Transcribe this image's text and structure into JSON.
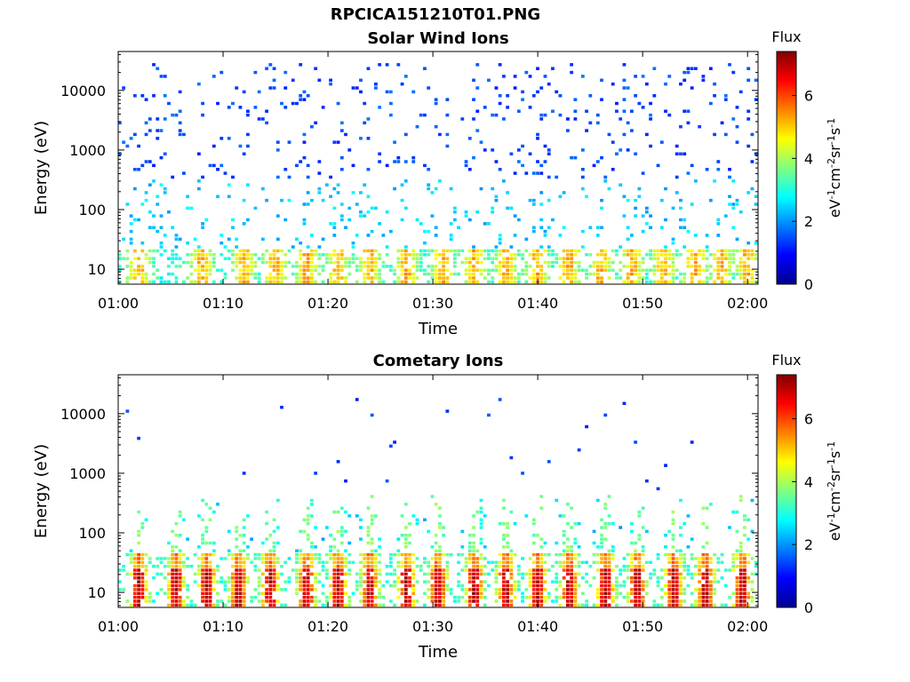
{
  "page": {
    "title": "RPCICA151210T01.PNG"
  },
  "colorbar": {
    "label": "Flux",
    "unit_main": "eV",
    "unit_cm": "cm",
    "unit_sr": "sr",
    "unit_s": "s",
    "unit_exp": "-1",
    "unit_exp2": "-2",
    "ticks": [
      "0",
      "2",
      "4",
      "6"
    ],
    "range": [
      0,
      7.4
    ],
    "colormap": [
      "#00008f",
      "#0000ff",
      "#0080ff",
      "#00ffff",
      "#80ff80",
      "#ffff00",
      "#ff8000",
      "#ff0000",
      "#800000"
    ]
  },
  "chart_data": [
    {
      "type": "heatmap",
      "title": "Solar Wind Ions",
      "xlabel": "Time",
      "ylabel": "Energy (eV)",
      "x_ticks": [
        "01:00",
        "01:10",
        "01:20",
        "01:30",
        "01:40",
        "01:50",
        "02:00"
      ],
      "y_ticks": [
        "10",
        "100",
        "1000",
        "10000"
      ],
      "x_range_minutes": [
        0,
        61
      ],
      "y_scale": "log",
      "y_range": [
        5.6,
        45000
      ],
      "dominant_band_eV": [
        6,
        20
      ],
      "peak_times_minutes": [
        2,
        8,
        12,
        15,
        18,
        21,
        24,
        27.5,
        31,
        34,
        37,
        40,
        43,
        46,
        49,
        52,
        55,
        57.5,
        60
      ],
      "background_flux_levels": [
        1,
        2.5
      ]
    },
    {
      "type": "heatmap",
      "title": "Cometary Ions",
      "xlabel": "Time",
      "ylabel": "Energy (eV)",
      "x_ticks": [
        "01:00",
        "01:10",
        "01:20",
        "01:30",
        "01:40",
        "01:50",
        "02:00"
      ],
      "y_ticks": [
        "10",
        "100",
        "1000",
        "10000"
      ],
      "x_range_minutes": [
        0,
        61
      ],
      "y_scale": "log",
      "y_range": [
        5.6,
        45000
      ],
      "dominant_band_eV": [
        6,
        45
      ],
      "peak_times_minutes": [
        2,
        5.5,
        8.5,
        11.5,
        14.5,
        18,
        21,
        24,
        27.5,
        30.5,
        34,
        37,
        40,
        43,
        46.5,
        49.5,
        53,
        56,
        59.5
      ],
      "peak_flux": 7
    }
  ]
}
